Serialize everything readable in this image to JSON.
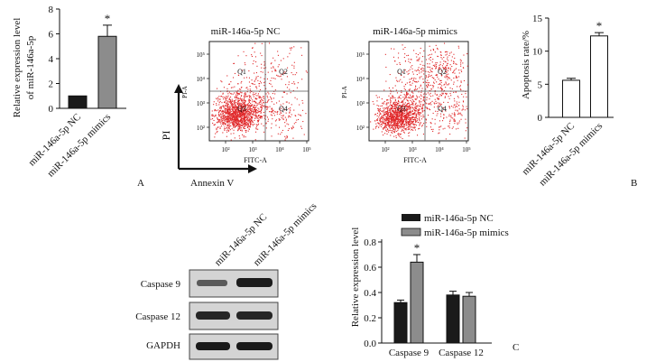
{
  "figure": {
    "panel_labels": {
      "a": "A",
      "b": "B",
      "c": "C"
    },
    "groups": [
      "miR-146a-5p NC",
      "miR-146a-5p mimics"
    ],
    "colors": {
      "nc_bar": "#1a1a1a",
      "mimic_bar": "#8c8c8c",
      "open_bar": "#ffffff",
      "dot_red": "#e0282a"
    }
  },
  "panel_a": {
    "chart_data": {
      "type": "bar",
      "ylabel": "Relative expression level of miR-146a-5p",
      "ylabel_lines": [
        "Relative expression level",
        "of miR-146a-5p"
      ],
      "categories": [
        "miR-146a-5p NC",
        "miR-146a-5p mimics"
      ],
      "values": [
        1.0,
        5.8
      ],
      "errors": [
        0.0,
        0.9
      ],
      "yticks": [
        0,
        2,
        4,
        6,
        8
      ],
      "ylim": [
        0,
        8
      ],
      "significance": [
        "",
        "*"
      ]
    }
  },
  "flow": {
    "plots": [
      {
        "title": "miR-146a-5p NC"
      },
      {
        "title": "miR-146a-5p mimics"
      }
    ],
    "y_axis_label": "PI-A",
    "x_axis_label": "FITC-A",
    "quadrants": [
      "Q1",
      "Q2",
      "Q3",
      "Q4"
    ],
    "y_ticks": [
      "10⁵",
      "10⁴",
      "10³",
      "10²"
    ],
    "x_ticks": [
      "10²",
      "10³",
      "10⁴",
      "10⁵"
    ],
    "pi_label": "PI",
    "annexin_label": "Annexin V"
  },
  "panel_b": {
    "chart_data": {
      "type": "bar",
      "ylabel": "Apoptosis rate/%",
      "categories": [
        "miR-146a-5p NC",
        "miR-146a-5p mimics"
      ],
      "values": [
        5.6,
        12.3
      ],
      "errors": [
        0.3,
        0.5
      ],
      "yticks": [
        0,
        5,
        10,
        15
      ],
      "ylim": [
        0,
        15
      ],
      "significance": [
        "",
        "*"
      ]
    }
  },
  "western": {
    "lanes": [
      "miR-146a-5p NC",
      "miR-146a-5p mimics"
    ],
    "rows": [
      "Caspase 9",
      "Caspase 12",
      "GAPDH"
    ]
  },
  "panel_c": {
    "chart_data": {
      "type": "bar",
      "ylabel": "Relative expression level",
      "categories": [
        "Caspase 9",
        "Caspase 12"
      ],
      "series": [
        {
          "name": "miR-146a-5p NC",
          "values": [
            0.32,
            0.38
          ],
          "errors": [
            0.02,
            0.03
          ]
        },
        {
          "name": "miR-146a-5p mimics",
          "values": [
            0.64,
            0.37
          ],
          "errors": [
            0.06,
            0.03
          ]
        }
      ],
      "yticks": [
        "0.0",
        "0.2",
        "0.4",
        "0.6",
        "0.8"
      ],
      "ylim": [
        0,
        0.8
      ],
      "significance": [
        [
          "",
          "*"
        ],
        [
          "",
          ""
        ]
      ]
    }
  }
}
